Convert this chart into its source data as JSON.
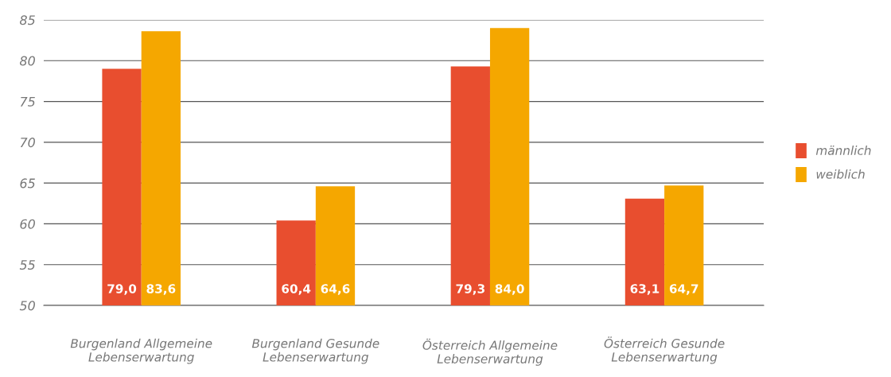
{
  "chart_data": {
    "type": "bar",
    "categories": [
      "Burgenland Allgemeine Lebenserwartung",
      "Burgenland Gesunde Lebenserwartung",
      "Österreich Allgemeine Lebenserwartung",
      "Österreich Gesunde Lebenserwartung"
    ],
    "series": [
      {
        "name": "männlich",
        "color": "#e84e2f",
        "values": [
          79.0,
          60.4,
          79.3,
          63.1
        ],
        "value_labels": [
          "79,0",
          "60,4",
          "79,3",
          "63,1"
        ]
      },
      {
        "name": "weiblich",
        "color": "#f5a700",
        "values": [
          83.6,
          64.6,
          84.0,
          64.7
        ],
        "value_labels": [
          "83,6",
          "64,6",
          "84,0",
          "64,7"
        ]
      }
    ],
    "ylim": [
      50,
      85
    ],
    "yticks": [
      50,
      55,
      60,
      65,
      70,
      75,
      80,
      85
    ],
    "grid": "y",
    "legend": "right"
  }
}
